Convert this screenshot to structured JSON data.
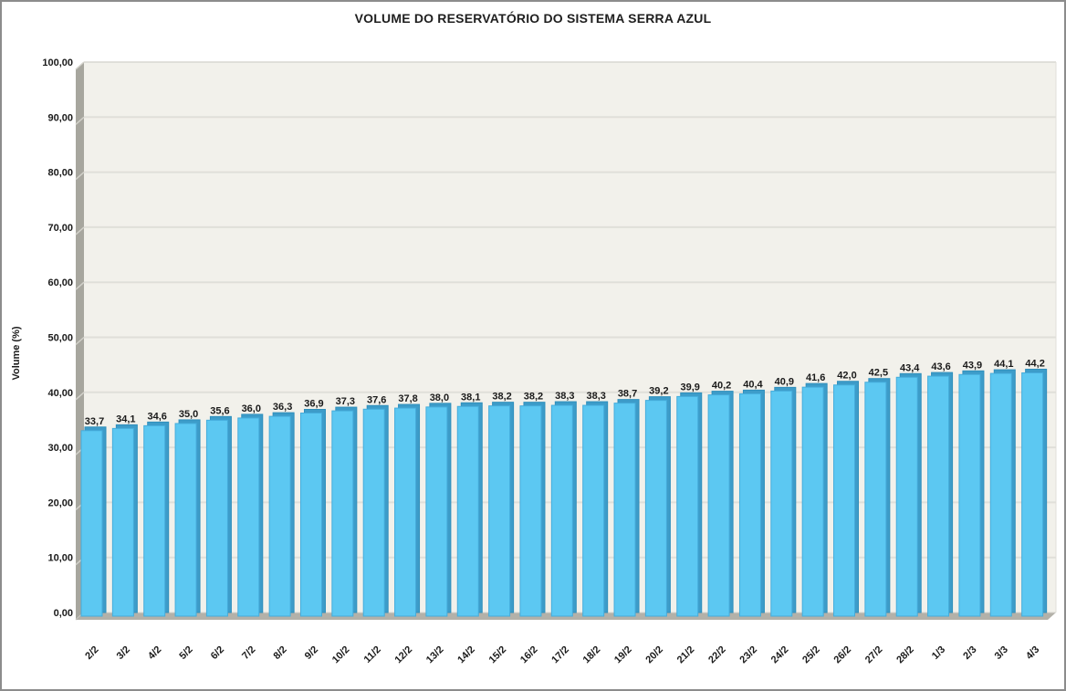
{
  "chart_data": {
    "type": "bar",
    "title": "VOLUME DO RESERVATÓRIO DO SISTEMA SERRA AZUL",
    "xlabel": "",
    "ylabel": "Volume (%)",
    "ylim": [
      0,
      100
    ],
    "ytick_step": 10,
    "ytick_labels": [
      "0,00",
      "10,00",
      "20,00",
      "30,00",
      "40,00",
      "50,00",
      "60,00",
      "70,00",
      "80,00",
      "90,00",
      "100,00"
    ],
    "grid": true,
    "legend_position": "none",
    "categories": [
      "2/2",
      "3/2",
      "4/2",
      "5/2",
      "6/2",
      "7/2",
      "8/2",
      "9/2",
      "10/2",
      "11/2",
      "12/2",
      "13/2",
      "14/2",
      "15/2",
      "16/2",
      "17/2",
      "18/2",
      "19/2",
      "20/2",
      "21/2",
      "22/2",
      "23/2",
      "24/2",
      "25/2",
      "26/2",
      "27/2",
      "28/2",
      "1/3",
      "2/3",
      "3/3",
      "4/3"
    ],
    "values": [
      33.7,
      34.1,
      34.6,
      35.0,
      35.6,
      36.0,
      36.3,
      36.9,
      37.3,
      37.6,
      37.8,
      38.0,
      38.1,
      38.2,
      38.2,
      38.3,
      38.3,
      38.7,
      39.2,
      39.9,
      40.2,
      40.4,
      40.9,
      41.6,
      42.0,
      42.5,
      43.4,
      43.6,
      43.9,
      44.1,
      44.2
    ],
    "value_labels": [
      "33,7",
      "34,1",
      "34,6",
      "35,0",
      "35,6",
      "36,0",
      "36,3",
      "36,9",
      "37,3",
      "37,6",
      "37,8",
      "38,0",
      "38,1",
      "38,2",
      "38,2",
      "38,3",
      "38,3",
      "38,7",
      "39,2",
      "39,9",
      "40,2",
      "40,4",
      "40,9",
      "41,6",
      "42,0",
      "42,5",
      "43,4",
      "43,6",
      "43,9",
      "44,1",
      "44,2"
    ],
    "style": {
      "bar_fill": "#5CC8F2",
      "bar_side": "#3D9CC9",
      "bar_side_stroke": "#2F8FBC",
      "bar_stroke": "#45ACDB",
      "plot_bg": "#F2F1EB",
      "gridline": "#E0DFD9",
      "top_edge": "#D8D7D1",
      "wall": "#A7A69E",
      "wall_bevel": "#D2D1CA",
      "floor": "#B3B1A9",
      "text": "#1A1A1A"
    }
  }
}
